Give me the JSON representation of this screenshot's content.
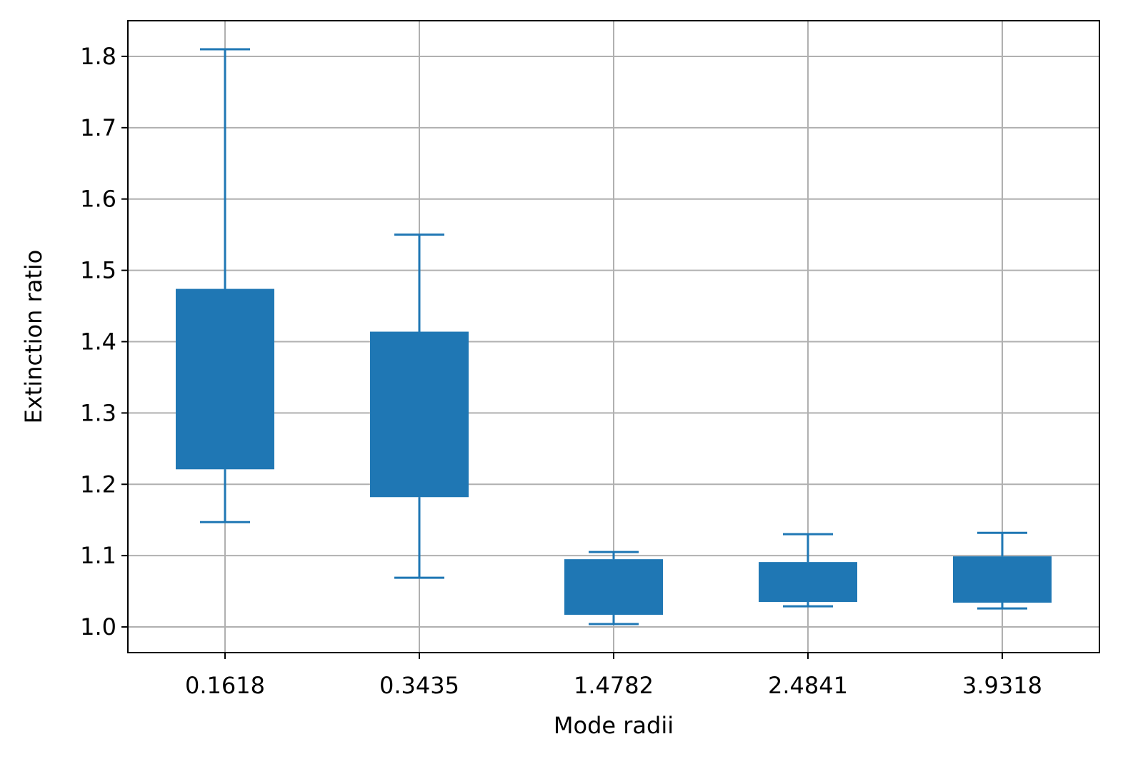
{
  "chart_data": {
    "type": "box",
    "xlabel": "Mode radii",
    "ylabel": "Extinction ratio",
    "categories": [
      "0.1618",
      "0.3435",
      "1.4782",
      "2.4841",
      "3.9318"
    ],
    "boxes": [
      {
        "whisker_low": 1.147,
        "q1": 1.221,
        "q3": 1.474,
        "whisker_high": 1.81
      },
      {
        "whisker_low": 1.069,
        "q1": 1.182,
        "q3": 1.414,
        "whisker_high": 1.55
      },
      {
        "whisker_low": 1.004,
        "q1": 1.017,
        "q3": 1.095,
        "whisker_high": 1.105
      },
      {
        "whisker_low": 1.029,
        "q1": 1.035,
        "q3": 1.091,
        "whisker_high": 1.13
      },
      {
        "whisker_low": 1.026,
        "q1": 1.034,
        "q3": 1.099,
        "whisker_high": 1.132
      }
    ],
    "y_ticks": [
      "1.0",
      "1.1",
      "1.2",
      "1.3",
      "1.4",
      "1.5",
      "1.6",
      "1.7",
      "1.8"
    ],
    "ylim": [
      0.964,
      1.85
    ],
    "grid": true,
    "colors": {
      "box": "#1f77b4",
      "grid": "#b0b0b0",
      "axes": "#000000"
    }
  }
}
